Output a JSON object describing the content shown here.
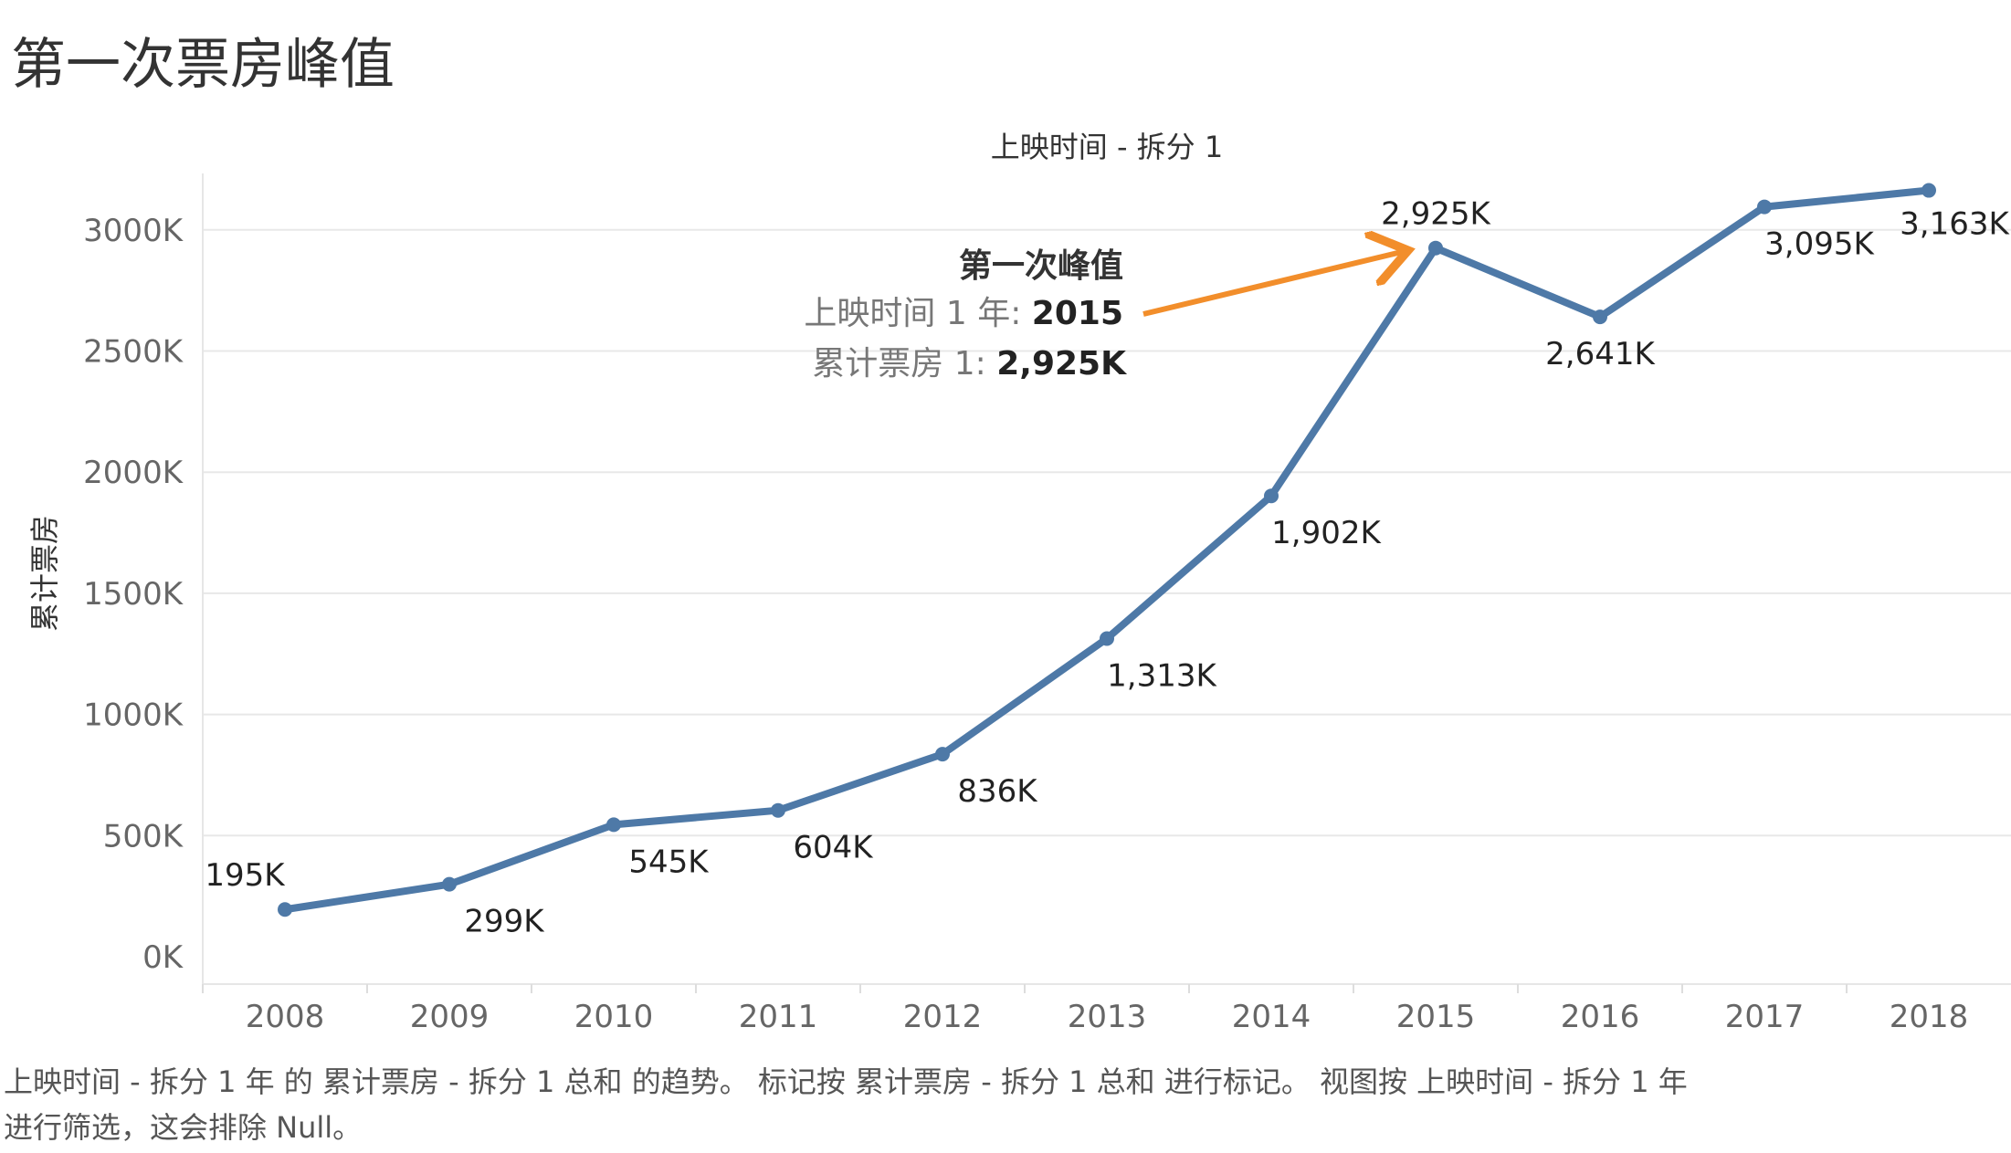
{
  "page": {
    "title": "第一次票房峰值",
    "caption_line1": "上映时间 - 拆分 1 年 的 累计票房 - 拆分 1 总和 的趋势。 标记按 累计票房 - 拆分 1 总和 进行标记。 视图按 上映时间 - 拆分 1 年",
    "caption_line2": "进行筛选，这会排除 Null。"
  },
  "chart_data": {
    "type": "line",
    "title": "上映时间 - 拆分 1",
    "xlabel": "",
    "ylabel": "累计票房",
    "x": [
      "2008",
      "2009",
      "2010",
      "2011",
      "2012",
      "2013",
      "2014",
      "2015",
      "2016",
      "2017",
      "2018"
    ],
    "series": [
      {
        "values": [
          195,
          299,
          545,
          604,
          836,
          1313,
          1902,
          2925,
          2641,
          3095,
          3163
        ],
        "labels": [
          "195K",
          "299K",
          "545K",
          "604K",
          "836K",
          "1,313K",
          "1,902K",
          "2,925K",
          "2,641K",
          "3,095K",
          "3,163K"
        ],
        "color": "#4e79a7"
      }
    ],
    "ylim": [
      0,
      3400
    ],
    "yticks": [
      0,
      500,
      1000,
      1500,
      2000,
      2500,
      3000
    ],
    "ytick_labels": [
      "0K",
      "500K",
      "1000K",
      "1500K",
      "2000K",
      "2500K",
      "3000K"
    ],
    "grid": true,
    "annotation": {
      "title": "第一次峰值",
      "line1_label": "上映时间 1 年: ",
      "line1_value": "2015",
      "line2_label": "累计票房 1: ",
      "line2_value": "2,925K",
      "target_index": 7,
      "arrow_color": "#f28e2b"
    }
  }
}
